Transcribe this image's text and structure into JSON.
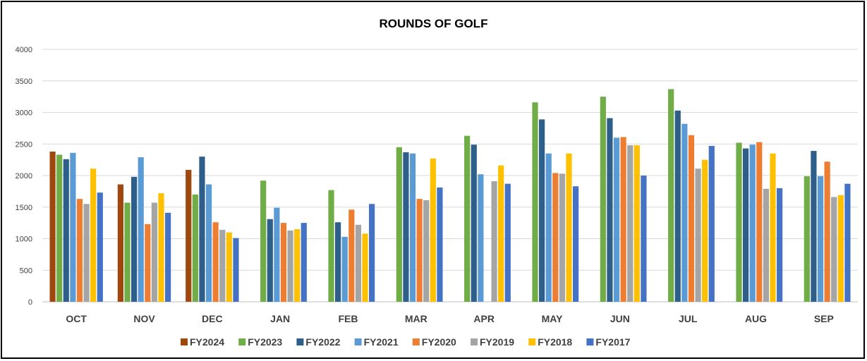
{
  "chart_data": {
    "type": "bar",
    "title": "ROUNDS OF GOLF",
    "xlabel": "",
    "ylabel": "",
    "ylim": [
      0,
      4000
    ],
    "yticks": [
      0,
      500,
      1000,
      1500,
      2000,
      2500,
      3000,
      3500,
      4000
    ],
    "grid": true,
    "legend_position": "bottom",
    "categories": [
      "OCT",
      "NOV",
      "DEC",
      "JAN",
      "FEB",
      "MAR",
      "APR",
      "MAY",
      "JUN",
      "JUL",
      "AUG",
      "SEP"
    ],
    "series": [
      {
        "name": "FY2024",
        "color": "#9E480E",
        "values": [
          2380,
          1860,
          2090,
          null,
          null,
          null,
          null,
          null,
          null,
          null,
          null,
          null
        ]
      },
      {
        "name": "FY2023",
        "color": "#70AD47",
        "values": [
          2330,
          1570,
          1700,
          1920,
          1770,
          2450,
          2630,
          3160,
          3250,
          3370,
          2520,
          1990
        ]
      },
      {
        "name": "FY2022",
        "color": "#2E5F8A",
        "values": [
          2260,
          1980,
          2300,
          1310,
          1260,
          2370,
          2490,
          2890,
          2910,
          3030,
          2430,
          2390
        ]
      },
      {
        "name": "FY2021",
        "color": "#5B9BD5",
        "values": [
          2360,
          2290,
          1860,
          1490,
          1030,
          2350,
          2020,
          2350,
          2600,
          2820,
          2490,
          1990
        ]
      },
      {
        "name": "FY2020",
        "color": "#ED7D31",
        "values": [
          1630,
          1230,
          1260,
          1250,
          1460,
          1630,
          null,
          2040,
          2610,
          2640,
          2530,
          2220
        ]
      },
      {
        "name": "FY2019",
        "color": "#A5A5A5",
        "values": [
          1550,
          1570,
          1140,
          1130,
          1220,
          1610,
          1910,
          2030,
          2480,
          2110,
          1790,
          1660
        ]
      },
      {
        "name": "FY2018",
        "color": "#FFC000",
        "values": [
          2110,
          1720,
          1100,
          1150,
          1080,
          2270,
          2160,
          2350,
          2480,
          2250,
          2350,
          1690
        ]
      },
      {
        "name": "FY2017",
        "color": "#4472C4",
        "values": [
          1730,
          1410,
          1010,
          1250,
          1550,
          1810,
          1870,
          1830,
          2000,
          2470,
          1800,
          1870
        ]
      }
    ]
  }
}
